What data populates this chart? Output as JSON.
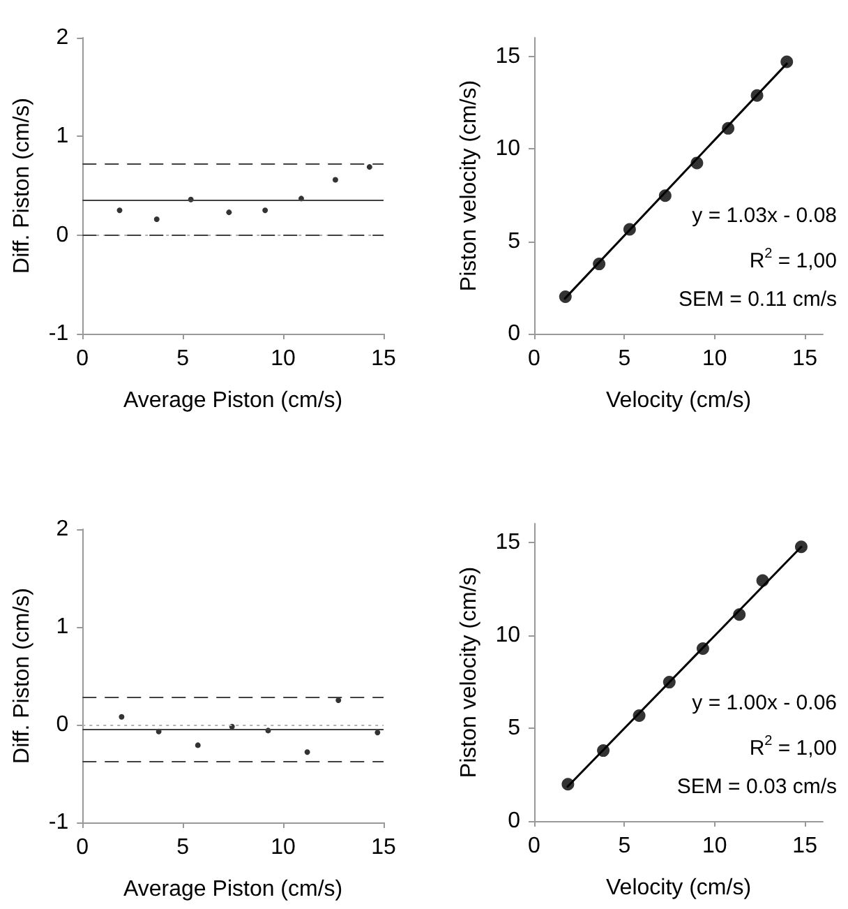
{
  "chart_data": [
    {
      "type": "scatter",
      "xlabel": "Average Piston (cm/s)",
      "ylabel": "Diff. Piston (cm/s)",
      "xlim": [
        0,
        15
      ],
      "xticks": [
        0,
        5,
        10,
        15
      ],
      "ylim": [
        -1,
        2
      ],
      "yticks": [
        -1,
        0,
        1,
        2
      ],
      "marker": "circle",
      "grid": false,
      "series": [
        {
          "color": "#000000",
          "x": [
            1.85,
            3.7,
            5.4,
            7.3,
            9.1,
            10.9,
            12.6,
            14.3
          ],
          "values": [
            0.25,
            0.16,
            0.36,
            0.23,
            0.25,
            0.37,
            0.56,
            0.69
          ]
        }
      ],
      "ref_lines": [
        {
          "axis": "y",
          "value": 0,
          "color": "#b0b0b0",
          "line_style": "dotted"
        },
        {
          "axis": "y",
          "value": 0.72,
          "color": "#404040",
          "line_style": "dashed"
        },
        {
          "axis": "y",
          "value": 0.36,
          "color": "#404040",
          "line_style": "solid"
        },
        {
          "axis": "y",
          "value": 0,
          "color": "#404040",
          "line_style": "dashed"
        }
      ]
    },
    {
      "type": "scatter",
      "xlabel": "Velocity (cm/s)",
      "ylabel": "Piston velocity (cm/s)",
      "xlim": [
        0,
        16
      ],
      "xticks": [
        0,
        5,
        10,
        15
      ],
      "ylim": [
        0,
        16
      ],
      "yticks": [
        0,
        5,
        10,
        15
      ],
      "marker": "circle",
      "grid": false,
      "series": [
        {
          "color": "#000000",
          "x": [
            1.73,
            3.6,
            5.29,
            7.26,
            9.02,
            10.75,
            12.35,
            14.0
          ],
          "values": [
            2.0,
            3.77,
            5.64,
            7.46,
            9.23,
            11.1,
            12.88,
            14.7
          ]
        },
        {
          "type": "line",
          "marker": "none",
          "line_style": "solid",
          "color": "#000000",
          "x": [
            1.7,
            14.0
          ],
          "values": [
            1.9,
            14.6
          ]
        }
      ],
      "annotations": [
        "y = 1.03x - 0.08",
        "R$^{2}$ = 1,00",
        "SEM = 0.11 cm/s"
      ]
    },
    {
      "type": "scatter",
      "xlabel": "Average Piston (cm/s)",
      "ylabel": "Diff. Piston (cm/s)",
      "xlim": [
        0,
        15
      ],
      "xticks": [
        0,
        5,
        10,
        15
      ],
      "ylim": [
        -1,
        2
      ],
      "yticks": [
        -1,
        0,
        1,
        2
      ],
      "marker": "circle",
      "grid": false,
      "series": [
        {
          "color": "#000000",
          "x": [
            1.95,
            3.8,
            5.75,
            7.45,
            9.25,
            11.2,
            12.75,
            14.7
          ],
          "values": [
            0.08,
            -0.07,
            -0.21,
            -0.02,
            -0.06,
            -0.28,
            0.25,
            -0.08
          ]
        }
      ],
      "ref_lines": [
        {
          "axis": "y",
          "value": 0,
          "color": "#b0b0b0",
          "line_style": "dotted"
        },
        {
          "axis": "y",
          "value": 0.28,
          "color": "#404040",
          "line_style": "dashed"
        },
        {
          "axis": "y",
          "value": -0.05,
          "color": "#404040",
          "line_style": "solid"
        },
        {
          "axis": "y",
          "value": -0.37,
          "color": "#404040",
          "line_style": "dashed"
        }
      ]
    },
    {
      "type": "scatter",
      "xlabel": "Velocity (cm/s)",
      "ylabel": "Piston velocity (cm/s)",
      "xlim": [
        0,
        16
      ],
      "xticks": [
        0,
        5,
        10,
        15
      ],
      "ylim": [
        0,
        16
      ],
      "yticks": [
        0,
        5,
        10,
        15
      ],
      "marker": "circle",
      "grid": false,
      "series": [
        {
          "color": "#000000",
          "x": [
            1.87,
            3.83,
            5.82,
            7.49,
            9.35,
            11.37,
            12.66,
            14.8
          ],
          "values": [
            1.98,
            3.79,
            5.67,
            7.47,
            9.28,
            11.11,
            12.94,
            14.75
          ]
        },
        {
          "type": "line",
          "marker": "none",
          "line_style": "solid",
          "color": "#000000",
          "x": [
            1.85,
            14.8
          ],
          "values": [
            1.85,
            14.75
          ]
        }
      ],
      "annotations": [
        "y = 1.00x - 0.06",
        "R$^{2}$ = 1,00",
        "SEM = 0.03 cm/s"
      ]
    }
  ]
}
